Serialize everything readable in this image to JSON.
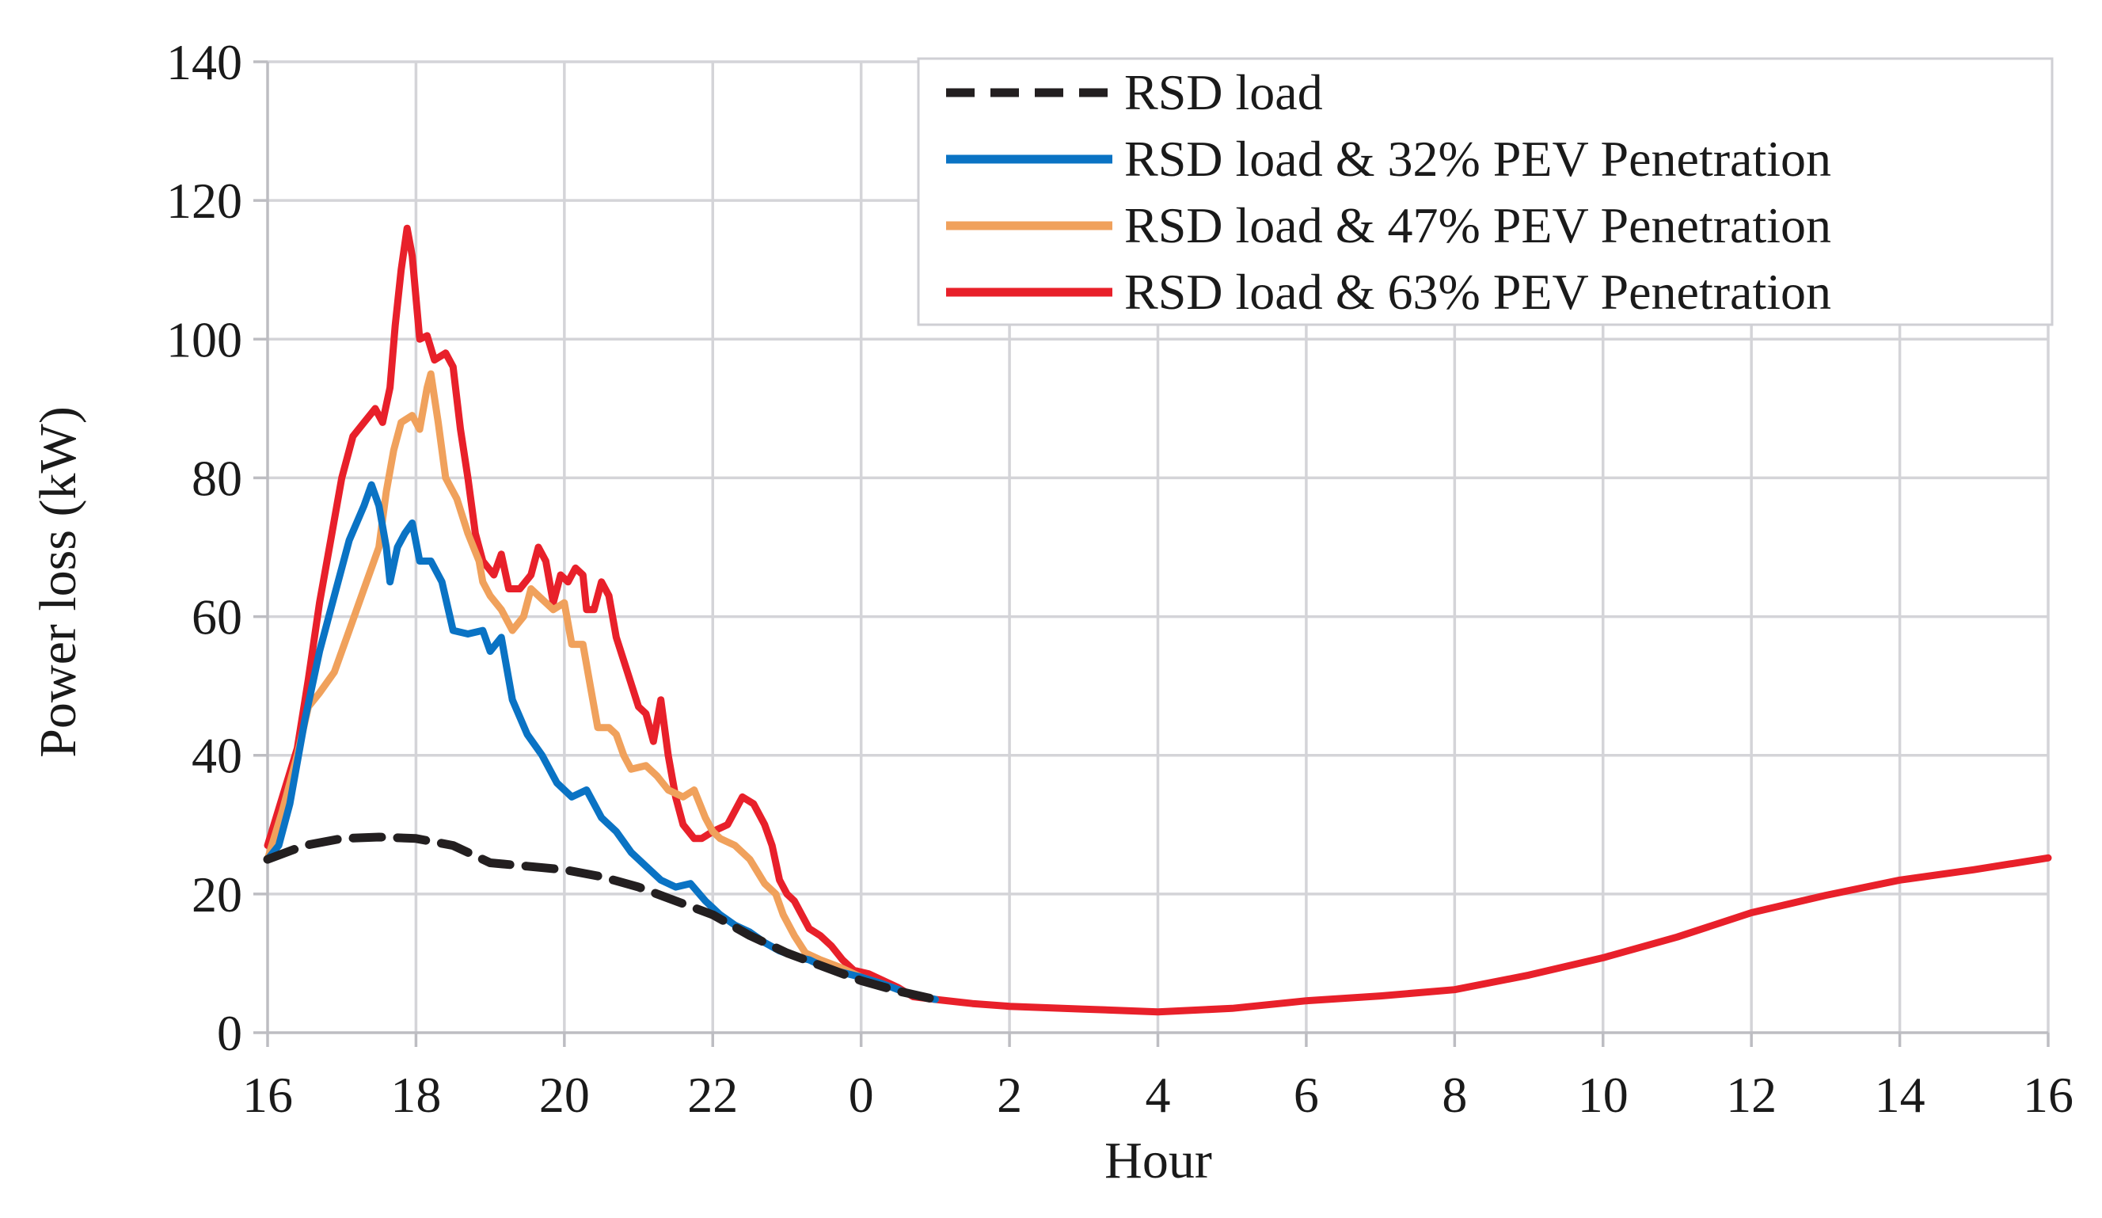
{
  "chart_data": {
    "type": "line",
    "title": "",
    "xlabel": "Hour",
    "ylabel": "Power loss (kW)",
    "ylim": [
      0,
      140
    ],
    "xlim": [
      0,
      24
    ],
    "grid": true,
    "legend_position": "top-right",
    "x_ticks": [
      "16",
      "18",
      "20",
      "22",
      "0",
      "2",
      "4",
      "6",
      "8",
      "10",
      "12",
      "14",
      "16"
    ],
    "y_ticks": [
      "0",
      "20",
      "40",
      "60",
      "80",
      "100",
      "120",
      "140"
    ],
    "x_unit_note": "x values are hours elapsed since 16:00",
    "series": [
      {
        "name": "RSD load",
        "color": "#231f20",
        "dash": true,
        "points": [
          [
            0,
            25
          ],
          [
            0.5,
            27
          ],
          [
            1,
            28
          ],
          [
            1.5,
            28.2
          ],
          [
            2,
            28
          ],
          [
            2.5,
            27
          ],
          [
            3,
            24.5
          ],
          [
            3.5,
            24
          ],
          [
            4,
            23.5
          ],
          [
            4.5,
            22.5
          ],
          [
            5,
            21
          ],
          [
            5.5,
            19
          ],
          [
            6,
            17
          ],
          [
            6.5,
            14
          ],
          [
            7,
            11.5
          ],
          [
            7.5,
            9.5
          ],
          [
            8,
            7.5
          ],
          [
            8.5,
            6
          ],
          [
            9,
            4.8
          ]
        ]
      },
      {
        "name": "RSD load & 32% PEV Penetration",
        "color": "#0a73c4",
        "dash": false,
        "points": [
          [
            0,
            25
          ],
          [
            0.15,
            27
          ],
          [
            0.3,
            33
          ],
          [
            0.5,
            45
          ],
          [
            0.7,
            55
          ],
          [
            0.9,
            63
          ],
          [
            1.1,
            71
          ],
          [
            1.3,
            76
          ],
          [
            1.4,
            79
          ],
          [
            1.5,
            76
          ],
          [
            1.6,
            70
          ],
          [
            1.65,
            65
          ],
          [
            1.75,
            70
          ],
          [
            1.85,
            72
          ],
          [
            1.95,
            73.5
          ],
          [
            2.05,
            68
          ],
          [
            2.2,
            68
          ],
          [
            2.35,
            65
          ],
          [
            2.5,
            58
          ],
          [
            2.7,
            57.5
          ],
          [
            2.9,
            58
          ],
          [
            3.0,
            55
          ],
          [
            3.15,
            57
          ],
          [
            3.3,
            48
          ],
          [
            3.5,
            43
          ],
          [
            3.7,
            40
          ],
          [
            3.9,
            36
          ],
          [
            4.1,
            34
          ],
          [
            4.3,
            35
          ],
          [
            4.5,
            31
          ],
          [
            4.7,
            29
          ],
          [
            4.9,
            26
          ],
          [
            5.1,
            24
          ],
          [
            5.3,
            22
          ],
          [
            5.5,
            21
          ],
          [
            5.7,
            21.5
          ],
          [
            5.9,
            19
          ],
          [
            6.1,
            17
          ],
          [
            6.3,
            15.5
          ],
          [
            6.5,
            14.5
          ],
          [
            6.7,
            13
          ],
          [
            6.9,
            11.8
          ],
          [
            7.1,
            11
          ],
          [
            7.3,
            10.5
          ],
          [
            7.5,
            9.5
          ],
          [
            7.7,
            8.8
          ],
          [
            8,
            8
          ],
          [
            8.3,
            7
          ],
          [
            8.6,
            5.8
          ],
          [
            9,
            4.8
          ]
        ]
      },
      {
        "name": "RSD load & 47% PEV Penetration",
        "color": "#f0a15c",
        "dash": false,
        "points": [
          [
            0,
            25
          ],
          [
            0.2,
            32
          ],
          [
            0.4,
            40
          ],
          [
            0.55,
            47
          ],
          [
            0.7,
            49
          ],
          [
            0.9,
            52
          ],
          [
            1.1,
            58
          ],
          [
            1.3,
            64
          ],
          [
            1.5,
            70
          ],
          [
            1.6,
            78
          ],
          [
            1.7,
            84
          ],
          [
            1.8,
            88
          ],
          [
            1.95,
            89
          ],
          [
            2.05,
            87
          ],
          [
            2.15,
            93
          ],
          [
            2.2,
            95
          ],
          [
            2.3,
            88
          ],
          [
            2.4,
            80
          ],
          [
            2.55,
            77
          ],
          [
            2.7,
            72
          ],
          [
            2.85,
            68
          ],
          [
            2.9,
            65
          ],
          [
            3.0,
            63
          ],
          [
            3.15,
            61
          ],
          [
            3.3,
            58
          ],
          [
            3.45,
            60
          ],
          [
            3.55,
            64
          ],
          [
            3.7,
            62.5
          ],
          [
            3.85,
            61
          ],
          [
            4.0,
            62
          ],
          [
            4.1,
            56
          ],
          [
            4.25,
            56
          ],
          [
            4.35,
            50
          ],
          [
            4.45,
            44
          ],
          [
            4.6,
            44
          ],
          [
            4.7,
            43
          ],
          [
            4.8,
            40
          ],
          [
            4.9,
            38
          ],
          [
            5.1,
            38.5
          ],
          [
            5.25,
            37
          ],
          [
            5.4,
            35
          ],
          [
            5.6,
            34
          ],
          [
            5.75,
            35
          ],
          [
            5.9,
            31
          ],
          [
            6.0,
            29
          ],
          [
            6.1,
            28
          ],
          [
            6.3,
            27
          ],
          [
            6.5,
            25
          ],
          [
            6.7,
            21.5
          ],
          [
            6.85,
            20
          ],
          [
            6.95,
            17
          ],
          [
            7.1,
            14
          ],
          [
            7.25,
            11.5
          ],
          [
            7.45,
            10.5
          ],
          [
            7.7,
            9.5
          ],
          [
            8,
            8
          ],
          [
            8.3,
            7
          ],
          [
            8.6,
            5.8
          ],
          [
            9,
            4.8
          ]
        ]
      },
      {
        "name": "RSD load & 63% PEV Penetration",
        "color": "#e8202a",
        "dash": false,
        "points": [
          [
            0,
            27
          ],
          [
            0.2,
            34
          ],
          [
            0.4,
            41
          ],
          [
            0.55,
            51
          ],
          [
            0.7,
            62
          ],
          [
            0.85,
            71
          ],
          [
            1,
            80
          ],
          [
            1.15,
            86
          ],
          [
            1.3,
            88
          ],
          [
            1.45,
            90
          ],
          [
            1.55,
            88
          ],
          [
            1.65,
            93
          ],
          [
            1.72,
            102
          ],
          [
            1.8,
            110
          ],
          [
            1.88,
            116
          ],
          [
            1.95,
            112
          ],
          [
            2.05,
            100
          ],
          [
            2.15,
            100.5
          ],
          [
            2.25,
            97
          ],
          [
            2.4,
            98
          ],
          [
            2.5,
            96
          ],
          [
            2.6,
            87
          ],
          [
            2.7,
            80
          ],
          [
            2.8,
            72
          ],
          [
            2.9,
            68
          ],
          [
            3.05,
            66
          ],
          [
            3.15,
            69
          ],
          [
            3.25,
            64
          ],
          [
            3.4,
            64
          ],
          [
            3.55,
            66
          ],
          [
            3.65,
            70
          ],
          [
            3.75,
            68
          ],
          [
            3.85,
            62
          ],
          [
            3.95,
            66
          ],
          [
            4.05,
            65
          ],
          [
            4.15,
            67
          ],
          [
            4.25,
            66
          ],
          [
            4.3,
            61
          ],
          [
            4.4,
            61
          ],
          [
            4.5,
            65
          ],
          [
            4.6,
            63
          ],
          [
            4.7,
            57
          ],
          [
            4.85,
            52
          ],
          [
            5.0,
            47
          ],
          [
            5.1,
            46
          ],
          [
            5.2,
            42
          ],
          [
            5.3,
            48
          ],
          [
            5.4,
            40
          ],
          [
            5.5,
            34
          ],
          [
            5.6,
            30
          ],
          [
            5.75,
            28
          ],
          [
            5.85,
            28
          ],
          [
            6.0,
            29
          ],
          [
            6.2,
            30
          ],
          [
            6.3,
            32
          ],
          [
            6.4,
            34
          ],
          [
            6.55,
            33
          ],
          [
            6.7,
            30
          ],
          [
            6.8,
            27
          ],
          [
            6.9,
            22
          ],
          [
            7.0,
            20
          ],
          [
            7.1,
            19
          ],
          [
            7.2,
            17
          ],
          [
            7.3,
            15
          ],
          [
            7.45,
            14
          ],
          [
            7.6,
            12.5
          ],
          [
            7.75,
            10.5
          ],
          [
            7.9,
            9
          ],
          [
            8.1,
            8.5
          ],
          [
            8.3,
            7.5
          ],
          [
            8.5,
            6.5
          ],
          [
            8.7,
            5.2
          ],
          [
            9,
            4.8
          ],
          [
            9.5,
            4.2
          ],
          [
            10,
            3.8
          ],
          [
            11,
            3.4
          ],
          [
            12,
            3.0
          ],
          [
            13,
            3.5
          ],
          [
            14,
            4.6
          ],
          [
            15,
            5.3
          ],
          [
            16,
            6.2
          ],
          [
            17,
            8.3
          ],
          [
            18,
            10.8
          ],
          [
            19,
            13.8
          ],
          [
            20,
            17.3
          ],
          [
            21,
            19.8
          ],
          [
            22,
            22
          ],
          [
            23,
            23.5
          ],
          [
            24,
            25.2
          ]
        ]
      }
    ]
  }
}
